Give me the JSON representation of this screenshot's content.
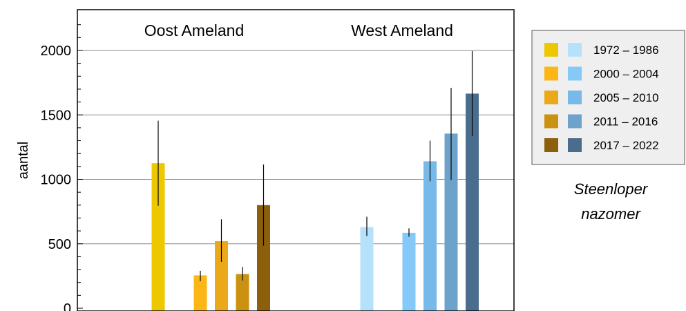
{
  "chart_data": {
    "type": "bar",
    "ylabel": "aantal",
    "xlabel": "",
    "ylim": [
      0,
      2250
    ],
    "yticks": [
      0,
      500,
      1000,
      1500,
      2000
    ],
    "grid": true,
    "legend_position": "right",
    "caption": [
      "Steenloper",
      "nazomer"
    ],
    "periods": [
      "1972 – 1986",
      "2000 – 2004",
      "2005 – 2010",
      "2011 – 2016",
      "2017 – 2022"
    ],
    "groups": [
      {
        "name": "Oost Ameland",
        "colors": [
          "#EDC700",
          "#FCB616",
          "#EBA819",
          "#CB9211",
          "#8C5F0C"
        ],
        "values": [
          1125,
          255,
          520,
          265,
          800
        ],
        "error_low": [
          795,
          210,
          360,
          215,
          485
        ],
        "error_high": [
          1455,
          290,
          690,
          320,
          1115
        ]
      },
      {
        "name": "West Ameland",
        "colors": [
          "#B6E1FB",
          "#84C9F7",
          "#77BAE9",
          "#6DA3CB",
          "#4B6D8D"
        ],
        "values": [
          630,
          585,
          1140,
          1355,
          1665
        ],
        "error_low": [
          560,
          555,
          985,
          995,
          1335
        ],
        "error_high": [
          710,
          620,
          1300,
          1710,
          1995
        ]
      }
    ]
  }
}
